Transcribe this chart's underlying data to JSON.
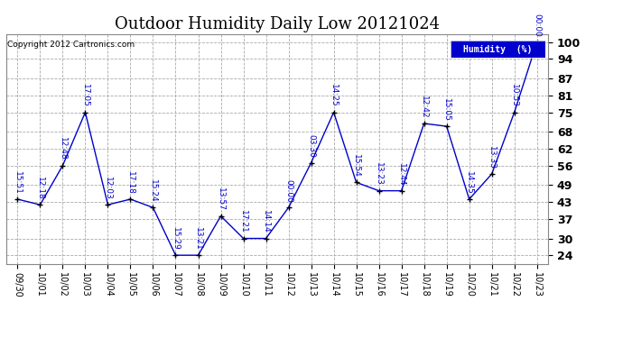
{
  "title": "Outdoor Humidity Daily Low 20121024",
  "copyright": "Copyright 2012 Cartronics.com",
  "legend_label": "Humidity  (%)",
  "dates": [
    "09/30",
    "10/01",
    "10/02",
    "10/03",
    "10/04",
    "10/05",
    "10/06",
    "10/07",
    "10/08",
    "10/09",
    "10/10",
    "10/11",
    "10/12",
    "10/13",
    "10/14",
    "10/15",
    "10/16",
    "10/17",
    "10/18",
    "10/19",
    "10/20",
    "10/21",
    "10/22",
    "10/23"
  ],
  "values": [
    44,
    42,
    56,
    75,
    42,
    44,
    41,
    24,
    24,
    38,
    30,
    30,
    41,
    57,
    75,
    50,
    47,
    47,
    71,
    70,
    44,
    53,
    75,
    100
  ],
  "point_labels": [
    "15:51",
    "12:18",
    "12:48",
    "17:05",
    "12:03",
    "17:18",
    "15:24",
    "15:29",
    "13:21",
    "13:57",
    "17:21",
    "14:14",
    "00:00",
    "03:30",
    "14:25",
    "15:54",
    "13:23",
    "12:44",
    "12:42",
    "15:05",
    "14:35",
    "13:33",
    "10:53",
    "00:00"
  ],
  "line_color": "#0000cc",
  "marker_color": "#000000",
  "label_color": "#0000cc",
  "bg_color": "#ffffff",
  "grid_color": "#aaaaaa",
  "yticks": [
    24,
    30,
    37,
    43,
    49,
    56,
    62,
    68,
    75,
    81,
    87,
    94,
    100
  ],
  "ylim": [
    21,
    103
  ],
  "title_fontsize": 13,
  "legend_bg": "#0000cc",
  "legend_text_color": "#ffffff"
}
